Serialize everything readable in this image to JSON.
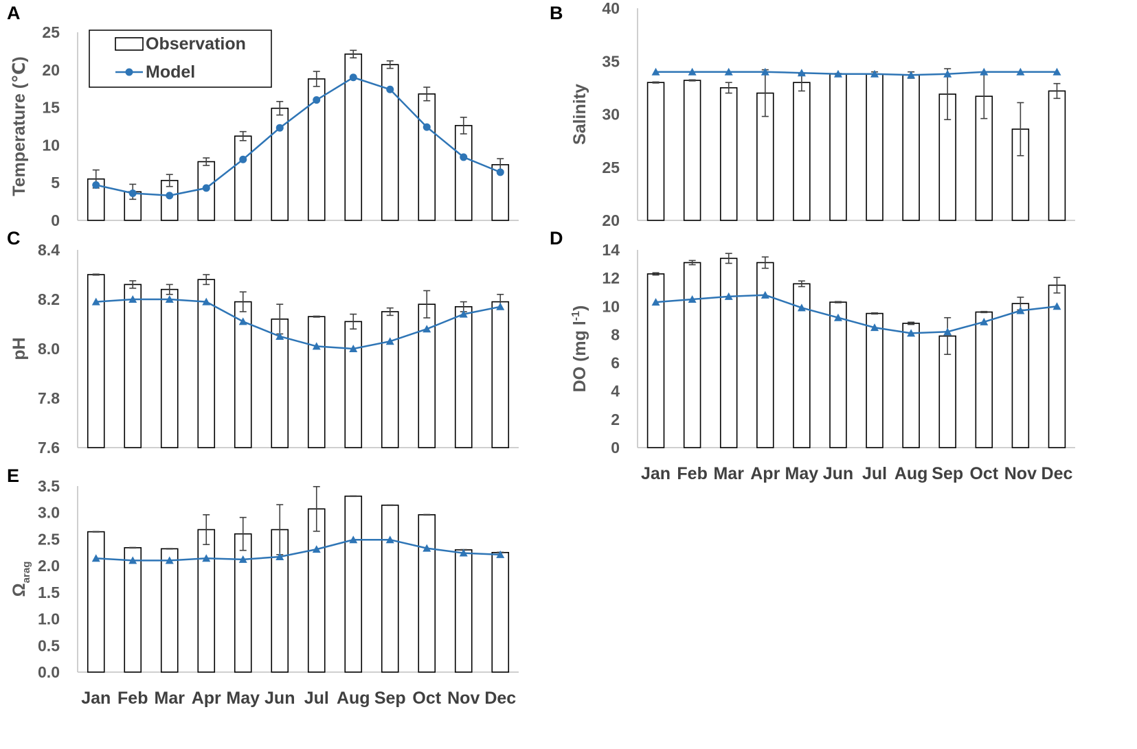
{
  "figure": {
    "months": [
      "Jan",
      "Feb",
      "Mar",
      "Apr",
      "May",
      "Jun",
      "Jul",
      "Aug",
      "Sep",
      "Oct",
      "Nov",
      "Dec"
    ],
    "legend": {
      "observation": "Observation",
      "model": "Model"
    },
    "colors": {
      "model": "#2E75B6",
      "bar_outline": "#000000",
      "error_bar": "#404040",
      "axis": "#BFBFBF",
      "tick_text": "#595959"
    }
  },
  "chart_data": [
    {
      "panel": "A",
      "type": "bar",
      "ylabel": "Temperature (℃)",
      "ylim": [
        0,
        25
      ],
      "yticks": [
        "0",
        "5",
        "10",
        "15",
        "20",
        "25"
      ],
      "marker": "circle",
      "legend_location": "top-left",
      "series": [
        {
          "name": "Observation",
          "values": [
            5.5,
            3.8,
            5.3,
            7.8,
            11.2,
            14.9,
            18.8,
            22.1,
            20.7,
            16.8,
            12.6,
            7.4
          ],
          "errors": [
            1.2,
            1.0,
            0.8,
            0.5,
            0.6,
            0.9,
            1.0,
            0.5,
            0.5,
            0.9,
            1.1,
            0.8
          ]
        },
        {
          "name": "Model",
          "values": [
            4.7,
            3.6,
            3.3,
            4.3,
            8.1,
            12.3,
            16.0,
            19.0,
            17.4,
            12.4,
            8.4,
            6.4
          ]
        }
      ]
    },
    {
      "panel": "B",
      "type": "bar",
      "ylabel": "Salinity",
      "ylim": [
        20,
        40
      ],
      "yticks": [
        "20",
        "25",
        "30",
        "35",
        "40"
      ],
      "marker": "triangle",
      "series": [
        {
          "name": "Observation",
          "values": [
            33.0,
            33.2,
            32.5,
            32.0,
            33.0,
            33.8,
            33.8,
            33.7,
            31.9,
            31.7,
            28.6,
            32.2
          ],
          "errors": [
            0.05,
            0.05,
            0.5,
            2.2,
            0.8,
            0.05,
            0.2,
            0.3,
            2.4,
            2.1,
            2.5,
            0.7
          ]
        },
        {
          "name": "Model",
          "values": [
            34.0,
            34.0,
            34.0,
            34.0,
            33.9,
            33.8,
            33.8,
            33.7,
            33.8,
            34.0,
            34.0,
            34.0
          ]
        }
      ]
    },
    {
      "panel": "C",
      "type": "bar",
      "ylabel": "pH",
      "ylim": [
        7.6,
        8.4
      ],
      "yticks": [
        "7.6",
        "7.8",
        "8.0",
        "8.2",
        "8.4"
      ],
      "marker": "triangle",
      "series": [
        {
          "name": "Observation",
          "values": [
            8.3,
            8.26,
            8.24,
            8.28,
            8.19,
            8.12,
            8.13,
            8.11,
            8.15,
            8.18,
            8.17,
            8.19
          ],
          "errors": [
            0.002,
            0.015,
            0.02,
            0.02,
            0.04,
            0.06,
            0.002,
            0.03,
            0.015,
            0.055,
            0.02,
            0.03
          ]
        },
        {
          "name": "Model",
          "values": [
            8.19,
            8.2,
            8.2,
            8.19,
            8.11,
            8.05,
            8.01,
            8.0,
            8.03,
            8.08,
            8.14,
            8.17
          ]
        }
      ]
    },
    {
      "panel": "D",
      "type": "bar",
      "ylabel": "DO (mg l",
      "ylabel_sup": "-1",
      "ylabel_end": ")",
      "ylim": [
        0,
        14
      ],
      "yticks": [
        "0",
        "2",
        "4",
        "6",
        "8",
        "10",
        "12",
        "14"
      ],
      "marker": "triangle",
      "series": [
        {
          "name": "Observation",
          "values": [
            12.3,
            13.1,
            13.4,
            13.1,
            11.6,
            10.3,
            9.5,
            8.8,
            7.9,
            9.6,
            10.2,
            11.5
          ],
          "errors": [
            0.08,
            0.15,
            0.35,
            0.4,
            0.2,
            0.04,
            0.04,
            0.08,
            1.3,
            0.04,
            0.45,
            0.55
          ]
        },
        {
          "name": "Model",
          "values": [
            10.3,
            10.5,
            10.7,
            10.8,
            9.9,
            9.2,
            8.5,
            8.1,
            8.2,
            8.9,
            9.7,
            10.0
          ]
        }
      ]
    },
    {
      "panel": "E",
      "type": "bar",
      "ylabel": "Ω",
      "ylabel_sub": "arag",
      "ylim": [
        0,
        3.5
      ],
      "yticks": [
        "0.0",
        "0.5",
        "1.0",
        "1.5",
        "2.0",
        "2.5",
        "3.0",
        "3.5"
      ],
      "marker": "triangle",
      "series": [
        {
          "name": "Observation",
          "values": [
            2.64,
            2.34,
            2.32,
            2.68,
            2.6,
            2.68,
            3.07,
            3.31,
            3.14,
            2.96,
            2.3,
            2.25
          ],
          "errors": [
            0.005,
            0.005,
            0.005,
            0.28,
            0.31,
            0.47,
            0.42,
            0.005,
            0.005,
            0.005,
            0.005,
            0.005
          ]
        },
        {
          "name": "Model",
          "values": [
            2.14,
            2.1,
            2.1,
            2.14,
            2.12,
            2.17,
            2.31,
            2.49,
            2.49,
            2.33,
            2.24,
            2.21
          ]
        }
      ]
    }
  ]
}
